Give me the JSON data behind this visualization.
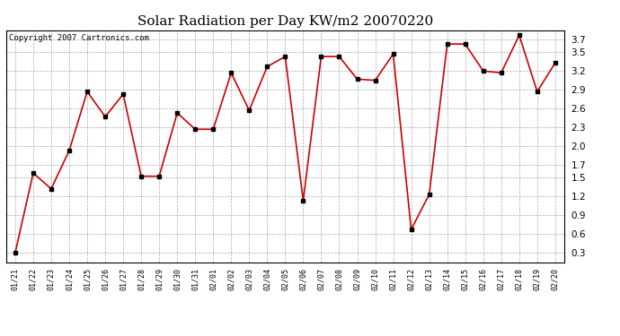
{
  "title": "Solar Radiation per Day KW/m2 20070220",
  "copyright_text": "Copyright 2007 Cartronics.com",
  "dates": [
    "01/21",
    "01/22",
    "01/23",
    "01/24",
    "01/25",
    "01/26",
    "01/27",
    "01/28",
    "01/29",
    "01/30",
    "01/31",
    "02/01",
    "02/02",
    "02/03",
    "02/04",
    "02/05",
    "02/06",
    "02/07",
    "02/08",
    "02/09",
    "02/10",
    "02/11",
    "02/12",
    "02/13",
    "02/14",
    "02/15",
    "02/16",
    "02/17",
    "02/18",
    "02/19",
    "02/20"
  ],
  "values": [
    0.3,
    1.57,
    1.32,
    1.93,
    2.87,
    2.47,
    2.83,
    1.52,
    1.52,
    2.53,
    2.27,
    2.27,
    3.17,
    2.57,
    3.27,
    3.43,
    1.13,
    3.43,
    3.43,
    3.07,
    3.05,
    3.47,
    0.67,
    1.23,
    3.63,
    3.63,
    3.2,
    3.17,
    3.77,
    2.87,
    3.33
  ],
  "line_color": "#cc0000",
  "marker_color": "#000000",
  "marker_size": 3,
  "bg_color": "#ffffff",
  "plot_bg_color": "#ffffff",
  "grid_color": "#aaaaaa",
  "title_fontsize": 11,
  "copyright_fontsize": 6.5,
  "yticks": [
    0.3,
    0.6,
    0.9,
    1.2,
    1.5,
    1.7,
    2.0,
    2.3,
    2.6,
    2.9,
    3.2,
    3.5,
    3.7
  ],
  "ymin": 0.15,
  "ymax": 3.85
}
